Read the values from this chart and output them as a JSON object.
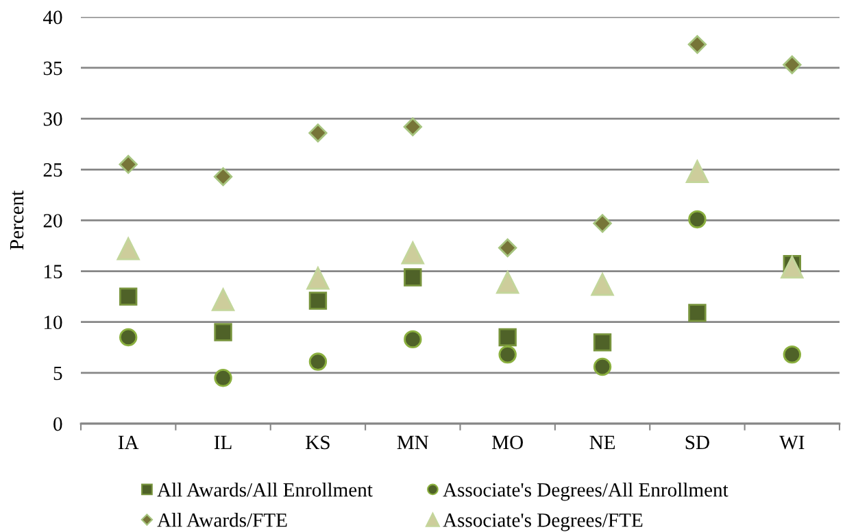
{
  "chart_data": {
    "type": "scatter",
    "ylabel": "Percent",
    "categories": [
      "IA",
      "IL",
      "KS",
      "MN",
      "MO",
      "NE",
      "SD",
      "WI"
    ],
    "series": [
      {
        "name": "All Awards/All Enrollment",
        "color": "#4f6228",
        "marker": "square",
        "values": [
          12.5,
          9.0,
          12.1,
          14.4,
          8.5,
          8.0,
          10.9,
          15.7
        ]
      },
      {
        "name": "Associate's Degrees/All Enrollment",
        "color": "#4f6228",
        "marker": "circle",
        "values": [
          8.5,
          4.5,
          6.1,
          8.3,
          6.8,
          5.6,
          20.1,
          6.8
        ]
      },
      {
        "name": "All Awards/FTE",
        "color": "#777538",
        "marker": "diamond",
        "values": [
          25.5,
          24.3,
          28.6,
          29.2,
          17.3,
          19.7,
          37.3,
          35.3
        ]
      },
      {
        "name": "Associate's Degrees/FTE",
        "color": "#cdcd9b",
        "marker": "triangle",
        "values": [
          17.2,
          12.2,
          14.3,
          16.8,
          13.9,
          13.7,
          24.8,
          15.4
        ]
      }
    ],
    "ylim": [
      0,
      40
    ],
    "yticks": [
      0,
      5,
      10,
      15,
      20,
      25,
      30,
      35,
      40
    ],
    "grid": "y",
    "legend": "bottom"
  }
}
